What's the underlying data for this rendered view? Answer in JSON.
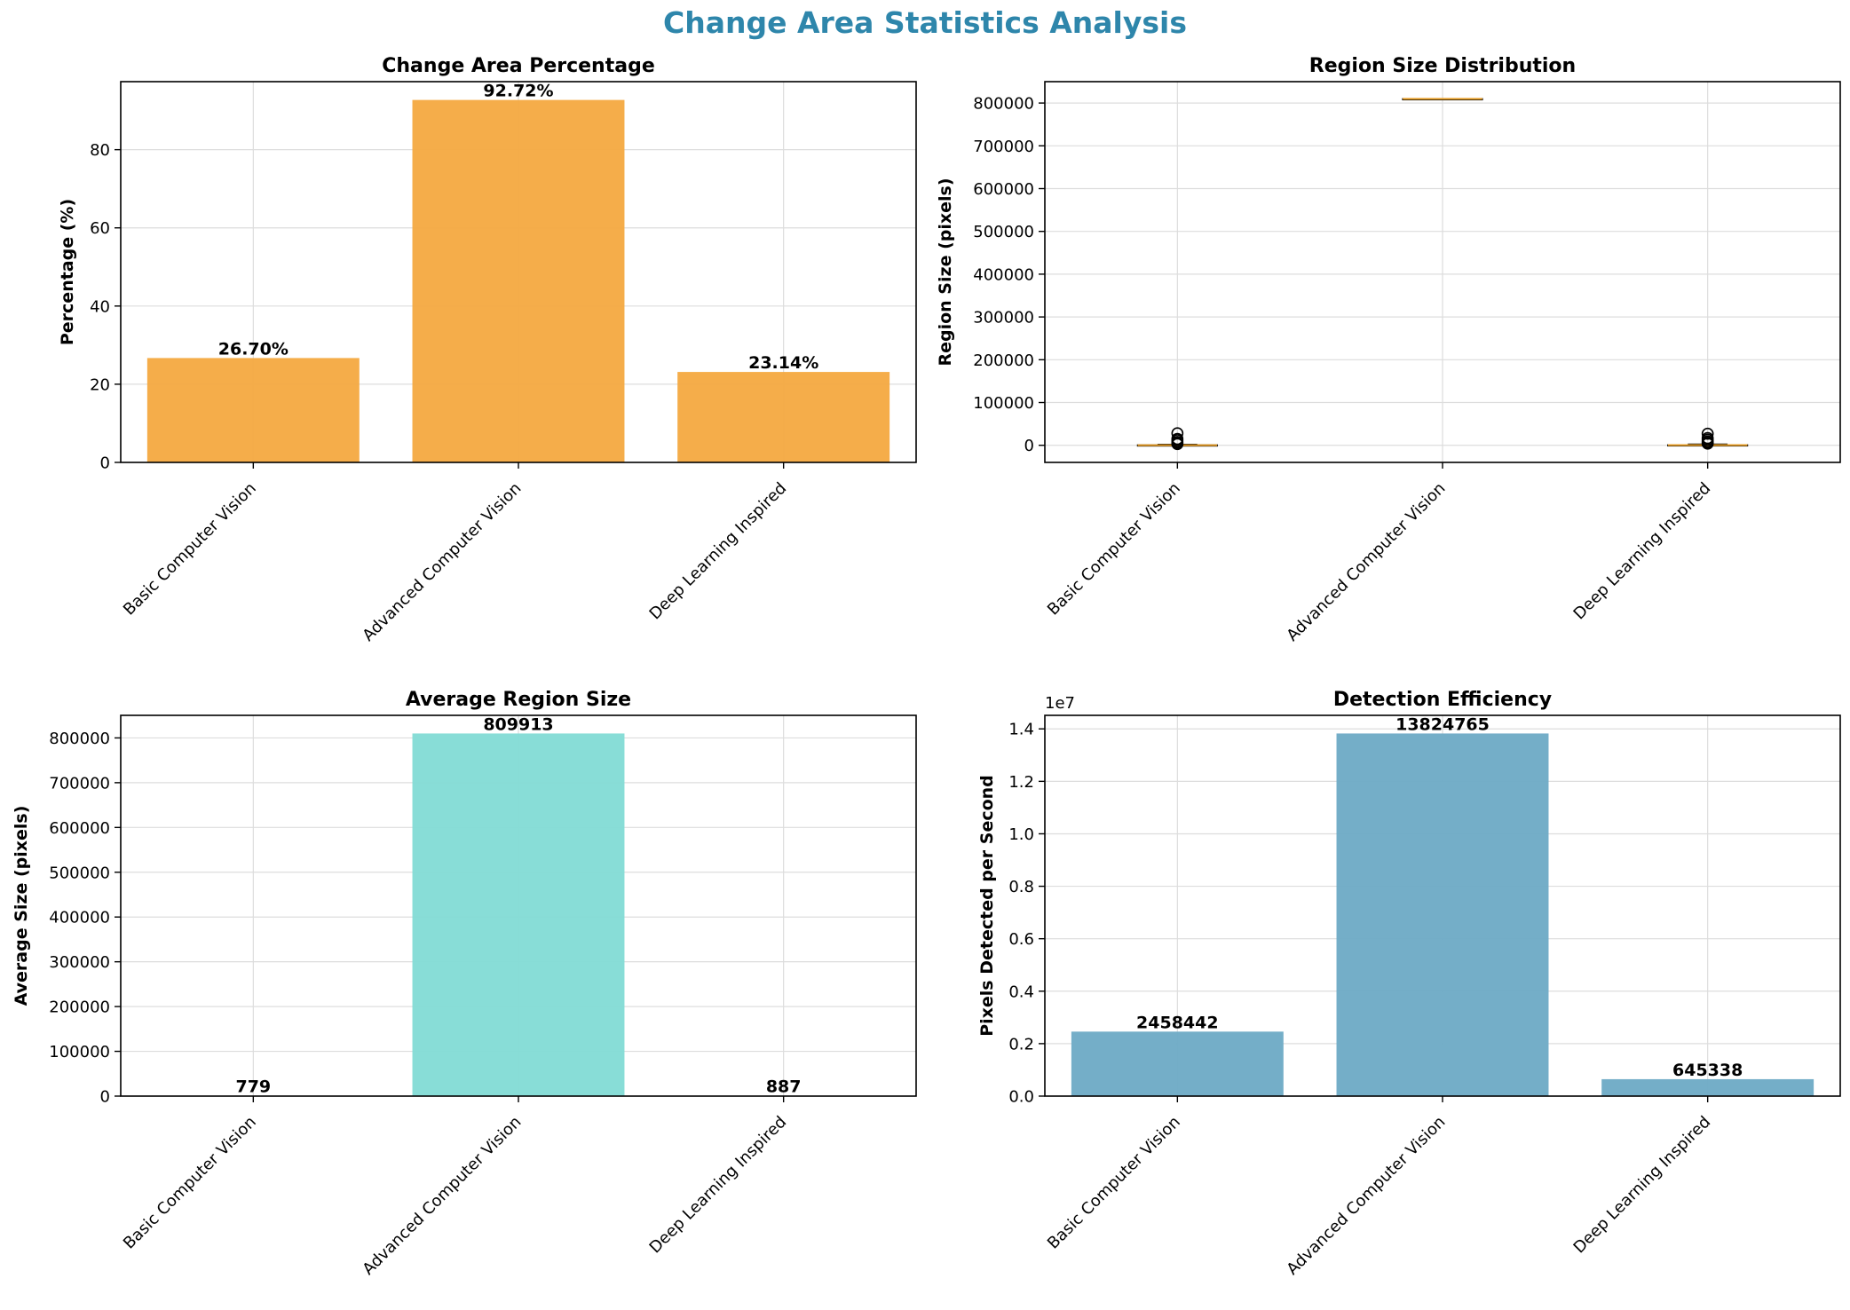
{
  "suptitle": "Change Area Statistics Analysis",
  "colors": {
    "title": "#2e86ab",
    "bar_orange": "#f4a940",
    "bar_teal": "#82dbd5",
    "bar_blue": "#6daac5",
    "box_median": "#e69e29",
    "axis": "#000000",
    "grid": "#dddddd"
  },
  "chart_data": [
    {
      "type": "bar",
      "title": "Change Area Percentage",
      "xlabel": "",
      "ylabel": "Percentage (%)",
      "categories": [
        "Basic Computer Vision",
        "Advanced Computer Vision",
        "Deep Learning Inspired"
      ],
      "values": [
        26.7,
        92.72,
        23.14
      ],
      "value_labels": [
        "26.70%",
        "92.72%",
        "23.14%"
      ],
      "ylim": [
        0,
        97.4
      ],
      "yticks": [
        0,
        20,
        40,
        60,
        80
      ],
      "ytick_labels": [
        "0",
        "20",
        "40",
        "60",
        "80"
      ],
      "color": "#f4a940",
      "grid": true
    },
    {
      "type": "box",
      "title": "Region Size Distribution",
      "xlabel": "",
      "ylabel": "Region Size (pixels)",
      "categories": [
        "Basic Computer Vision",
        "Advanced Computer Vision",
        "Deep Learning Inspired"
      ],
      "boxes": [
        {
          "q1": 100,
          "median": 300,
          "q3": 700,
          "whisker_low": 1,
          "whisker_high": 2000,
          "outliers": [
            3000,
            5000,
            8000,
            12000,
            15000,
            28000
          ]
        },
        {
          "q1": 809913,
          "median": 809913,
          "q3": 809913,
          "whisker_low": 809913,
          "whisker_high": 809913,
          "outliers": []
        },
        {
          "q1": 150,
          "median": 400,
          "q3": 900,
          "whisker_low": 1,
          "whisker_high": 2500,
          "outliers": [
            4000,
            6000,
            9000,
            13000,
            17000,
            27000
          ]
        }
      ],
      "ylim": [
        -40000,
        850000
      ],
      "yticks": [
        0,
        100000,
        200000,
        300000,
        400000,
        500000,
        600000,
        700000,
        800000
      ],
      "ytick_labels": [
        "0",
        "100000",
        "200000",
        "300000",
        "400000",
        "500000",
        "600000",
        "700000",
        "800000"
      ],
      "grid": true
    },
    {
      "type": "bar",
      "title": "Average Region Size",
      "xlabel": "",
      "ylabel": "Average Size (pixels)",
      "categories": [
        "Basic Computer Vision",
        "Advanced Computer Vision",
        "Deep Learning Inspired"
      ],
      "values": [
        779,
        809913,
        887
      ],
      "value_labels": [
        "779",
        "809913",
        "887"
      ],
      "ylim": [
        0,
        850400
      ],
      "yticks": [
        0,
        100000,
        200000,
        300000,
        400000,
        500000,
        600000,
        700000,
        800000
      ],
      "ytick_labels": [
        "0",
        "100000",
        "200000",
        "300000",
        "400000",
        "500000",
        "600000",
        "700000",
        "800000"
      ],
      "color": "#82dbd5",
      "grid": true
    },
    {
      "type": "bar",
      "title": "Detection Efficiency",
      "xlabel": "",
      "ylabel": "Pixels Detected per Second",
      "offset_label": "1e7",
      "categories": [
        "Basic Computer Vision",
        "Advanced Computer Vision",
        "Deep Learning Inspired"
      ],
      "values": [
        2458442,
        13824765,
        645338
      ],
      "value_labels": [
        "2458442",
        "13824765",
        "645338"
      ],
      "ylim": [
        0,
        14516000
      ],
      "yticks": [
        0,
        2000000,
        4000000,
        6000000,
        8000000,
        10000000,
        12000000,
        14000000
      ],
      "ytick_labels": [
        "0.0",
        "0.2",
        "0.4",
        "0.6",
        "0.8",
        "1.0",
        "1.2",
        "1.4"
      ],
      "color": "#6daac5",
      "grid": true
    }
  ]
}
